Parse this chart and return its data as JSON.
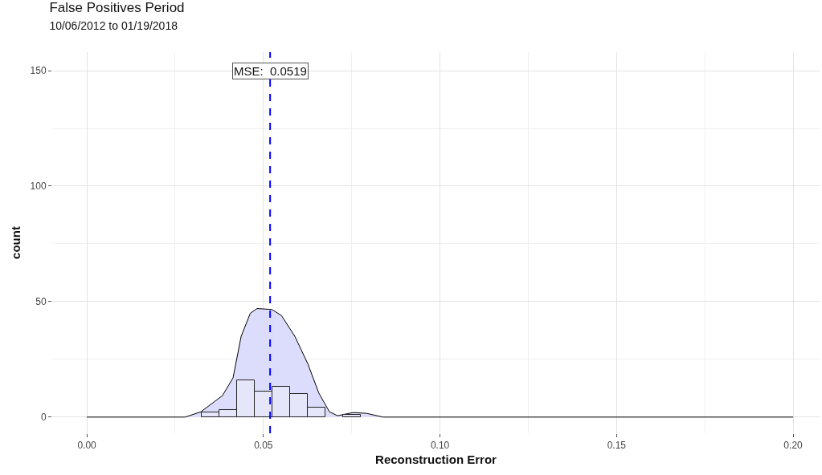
{
  "chart_data": {
    "type": "histogram",
    "title": "False Positives Period",
    "subtitle": "10/06/2012 to 01/19/2018",
    "xlabel": "Reconstruction Error",
    "ylabel": "count",
    "series": [
      {
        "type": "histogram",
        "color": "#e6e6fb",
        "bins": [
          0.0325,
          0.0375,
          0.0425,
          0.0475,
          0.0525,
          0.0575,
          0.0625,
          0.0675,
          0.0725,
          0.0775
        ],
        "values": [
          2,
          3,
          16,
          11,
          13,
          10,
          4,
          0,
          1
        ]
      },
      {
        "type": "area",
        "color": "#dcdcfc",
        "x": [
          0,
          0.0278,
          0.0323,
          0.0384,
          0.0414,
          0.0437,
          0.0463,
          0.0482,
          0.0524,
          0.0551,
          0.0589,
          0.0626,
          0.0657,
          0.0687,
          0.071,
          0.0755,
          0.0793,
          0.0839,
          0.2
        ],
        "values": [
          0,
          0,
          2.3,
          9.3,
          17,
          35,
          45,
          47,
          46.6,
          44,
          35,
          23,
          10.4,
          2.3,
          0.6,
          2,
          1.6,
          0,
          0
        ]
      }
    ],
    "ref_lines": [
      {
        "axis": "x",
        "value": 0.0519,
        "label": "MSE:  0.0519",
        "color": "#0000ff",
        "line_style": "dashed"
      }
    ],
    "xlim": [
      -0.0098,
      0.2075
    ],
    "ylim": [
      -7,
      158
    ],
    "xticks": [
      {
        "value": 0,
        "label": "0.00"
      },
      {
        "value": 0.05,
        "label": "0.05"
      },
      {
        "value": 0.1,
        "label": "0.10"
      },
      {
        "value": 0.15,
        "label": "0.15"
      },
      {
        "value": 0.2,
        "label": "0.20"
      }
    ],
    "yticks": [
      0,
      50,
      100,
      150
    ],
    "grid": true
  }
}
